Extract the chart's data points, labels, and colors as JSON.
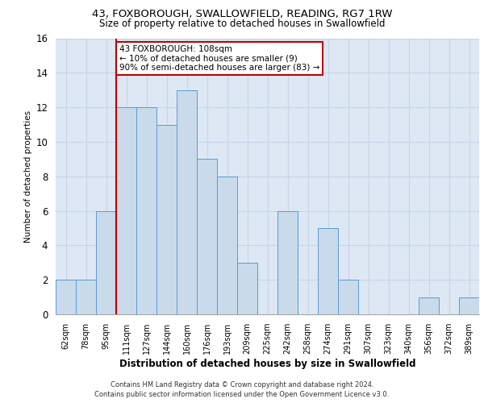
{
  "title_line1": "43, FOXBOROUGH, SWALLOWFIELD, READING, RG7 1RW",
  "title_line2": "Size of property relative to detached houses in Swallowfield",
  "xlabel": "Distribution of detached houses by size in Swallowfield",
  "ylabel": "Number of detached properties",
  "footer_line1": "Contains HM Land Registry data © Crown copyright and database right 2024.",
  "footer_line2": "Contains public sector information licensed under the Open Government Licence v3.0.",
  "annotation_line1": "43 FOXBOROUGH: 108sqm",
  "annotation_line2": "← 10% of detached houses are smaller (9)",
  "annotation_line3": "90% of semi-detached houses are larger (83) →",
  "categories": [
    "62sqm",
    "78sqm",
    "95sqm",
    "111sqm",
    "127sqm",
    "144sqm",
    "160sqm",
    "176sqm",
    "193sqm",
    "209sqm",
    "225sqm",
    "242sqm",
    "258sqm",
    "274sqm",
    "291sqm",
    "307sqm",
    "323sqm",
    "340sqm",
    "356sqm",
    "372sqm",
    "389sqm"
  ],
  "values": [
    2,
    2,
    6,
    12,
    12,
    11,
    13,
    9,
    8,
    3,
    0,
    6,
    0,
    5,
    2,
    0,
    0,
    0,
    1,
    0,
    1
  ],
  "bar_color": "#c9daea",
  "bar_edge_color": "#5b9bd5",
  "vline_color": "#c00000",
  "annotation_box_color": "#c00000",
  "ylim": [
    0,
    16
  ],
  "yticks": [
    0,
    2,
    4,
    6,
    8,
    10,
    12,
    14,
    16
  ],
  "grid_color": "#c8d4e4",
  "background_color": "#dde8f4",
  "plot_background": "#ffffff",
  "title_fontsize": 9.5,
  "subtitle_fontsize": 8.5,
  "ylabel_fontsize": 7.5,
  "xlabel_fontsize": 8.5,
  "tick_fontsize": 7.0,
  "footer_fontsize": 6.0,
  "annot_fontsize": 7.5
}
